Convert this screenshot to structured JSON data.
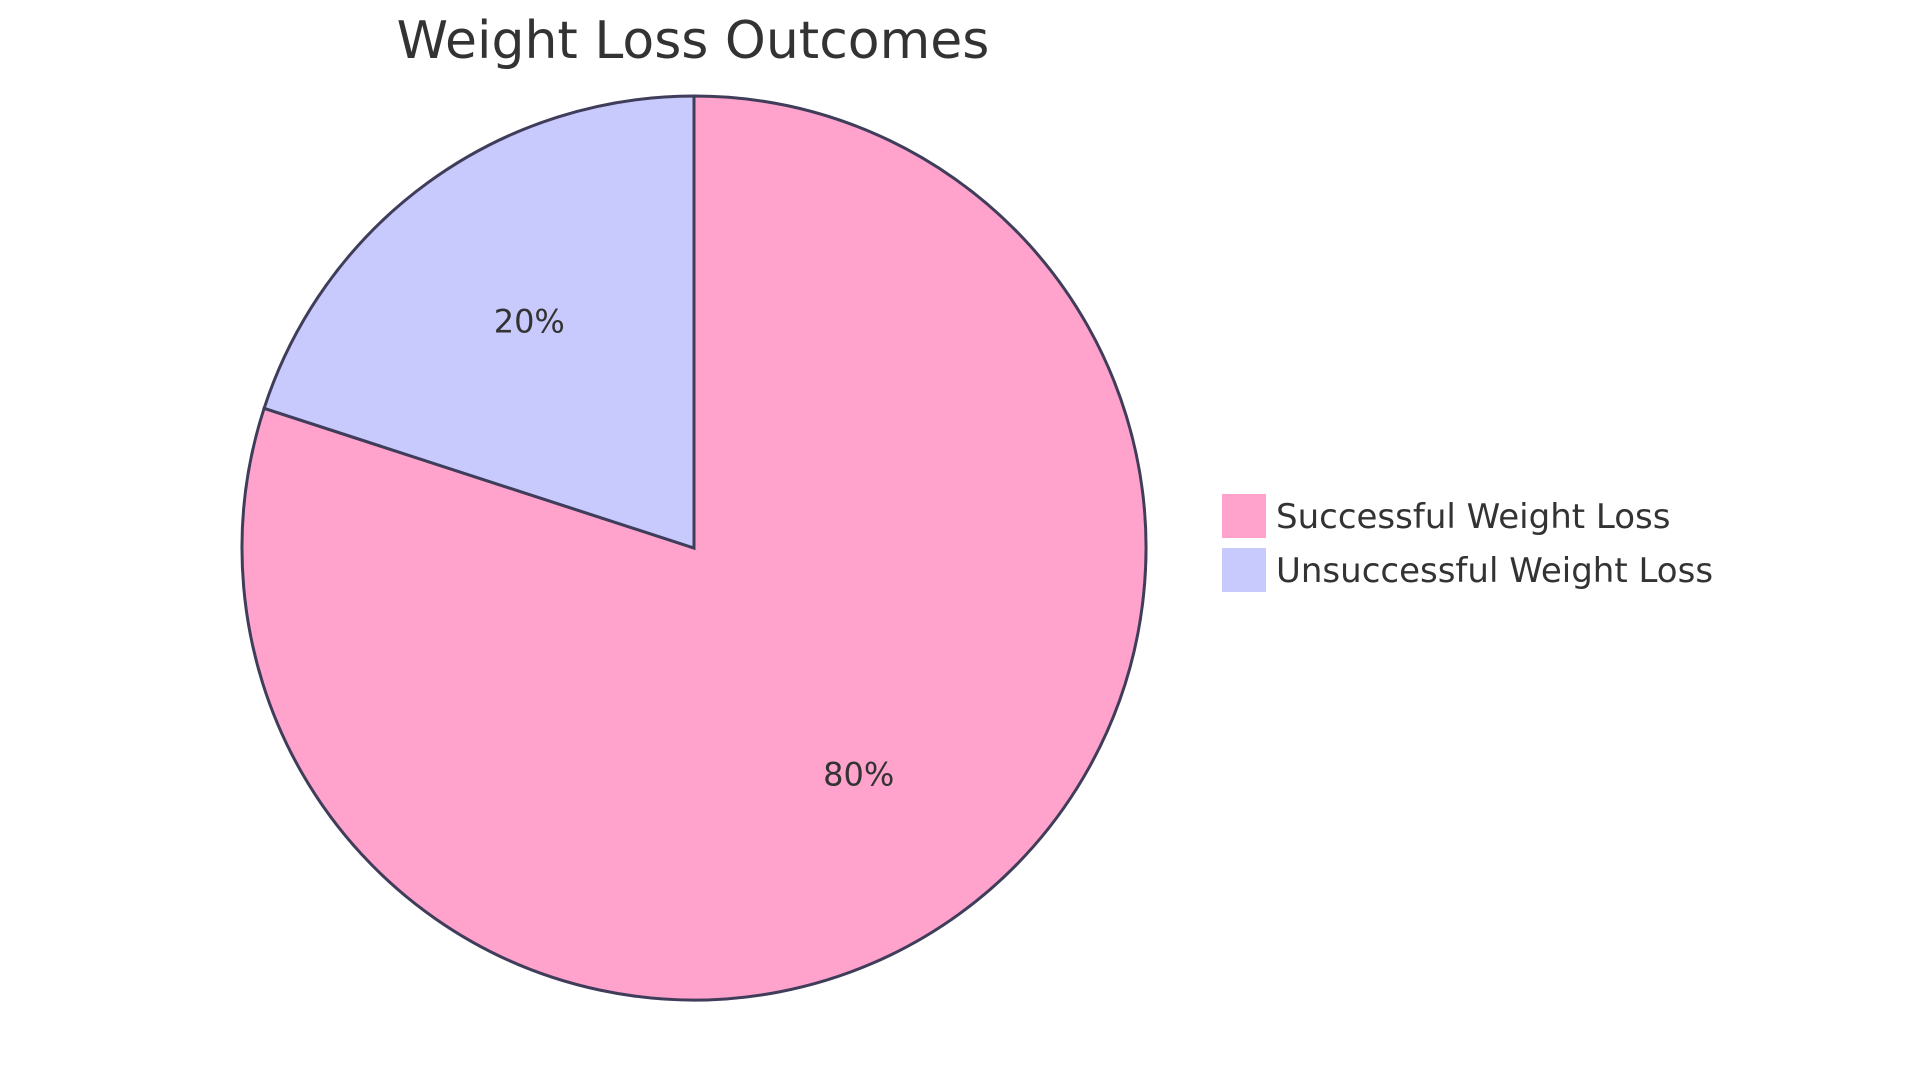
{
  "chart_data": {
    "type": "pie",
    "title": "Weight Loss Outcomes",
    "slices": [
      {
        "label": "Successful Weight Loss",
        "value": 80,
        "display": "80%",
        "color": "#ffa3cc"
      },
      {
        "label": "Unsuccessful Weight Loss",
        "value": 20,
        "display": "20%",
        "color": "#c8cafe"
      }
    ],
    "legend_position": "right",
    "stroke_color": "#3f3d5a"
  }
}
